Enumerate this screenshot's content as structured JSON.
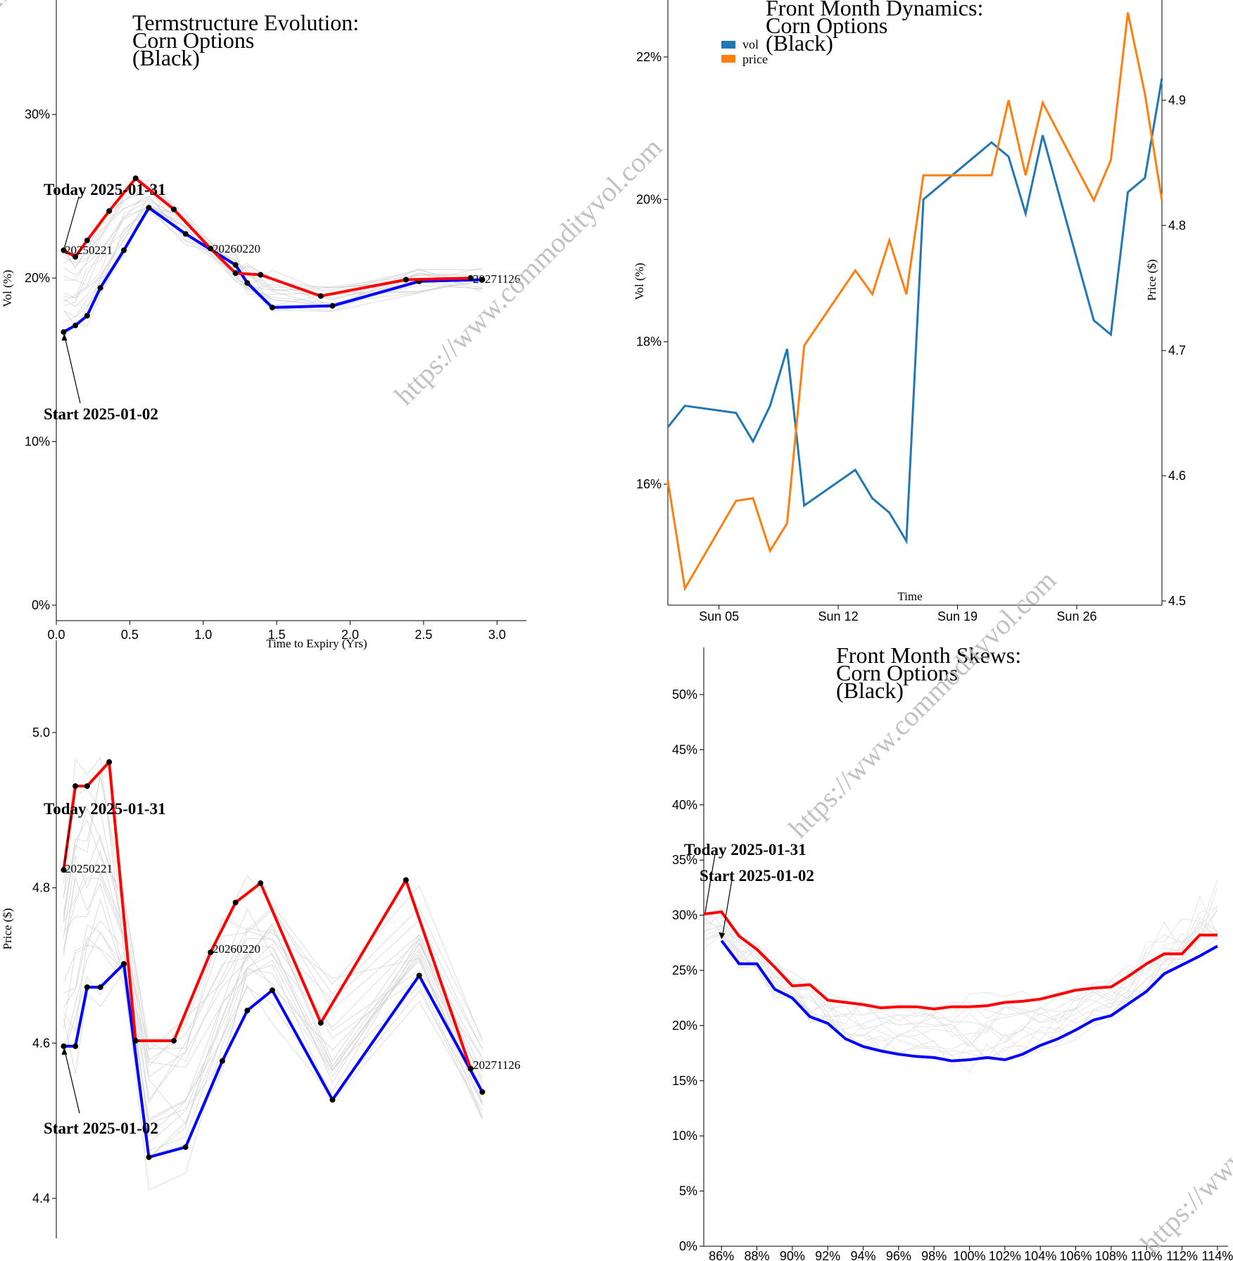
{
  "watermark": "https://www.commodityvol.com",
  "colors": {
    "start": "#0000ff",
    "today": "#ff0000",
    "history": "#d3d3d3",
    "vol": "#1f77b4",
    "price": "#ff7f0e",
    "point": "#000000"
  },
  "chart_data": [
    {
      "id": "termstructure_vol",
      "type": "line",
      "title": [
        "Termstructure Evolution:",
        "Corn Options",
        "(Black)"
      ],
      "xlabel": "Time to Expiry (Yrs)",
      "ylabel": "Vol (%)",
      "xlim": [
        0,
        3.2
      ],
      "ylim": [
        0,
        37
      ],
      "x_ticks": [
        0,
        0.5,
        1.0,
        1.5,
        2.0,
        2.5,
        3.0
      ],
      "x_tick_labels": [
        "0.0",
        "0.5",
        "1.0",
        "1.5",
        "2.0",
        "2.5",
        "3.0"
      ],
      "y_ticks": [
        0,
        10,
        20,
        30
      ],
      "y_tick_labels": [
        "0%",
        "10%",
        "20%",
        "30%"
      ],
      "annotations": {
        "today": "Today 2025-01-31",
        "start": "Start 2025-01-02",
        "expiries": [
          "20250221",
          "20260220",
          "20271126"
        ]
      },
      "series": [
        {
          "role": "start",
          "x": [
            0.05,
            0.13,
            0.21,
            0.3,
            0.46,
            0.63,
            0.88,
            1.22,
            1.3,
            1.47,
            1.88,
            2.47,
            2.9
          ],
          "values": [
            16.7,
            17.1,
            17.7,
            19.4,
            21.7,
            24.3,
            22.7,
            20.8,
            19.7,
            18.2,
            18.3,
            19.8,
            19.9
          ]
        },
        {
          "role": "today",
          "x": [
            0.05,
            0.13,
            0.21,
            0.36,
            0.54,
            0.8,
            1.05,
            1.22,
            1.39,
            1.8,
            2.38,
            2.82
          ],
          "values": [
            21.7,
            21.3,
            22.3,
            24.1,
            26.1,
            24.2,
            21.8,
            20.3,
            20.2,
            18.9,
            19.9,
            20.0
          ]
        }
      ]
    },
    {
      "id": "front_month_dynamics",
      "type": "line",
      "title": [
        "Front Month Dynamics:",
        "Corn Options",
        "(Black)"
      ],
      "xlabel": "Time",
      "ylabel": "Vol (%)",
      "y2label": "Price ($)",
      "xlim": [
        "2025-01-02",
        "2025-01-31"
      ],
      "ylim": [
        14.3,
        22.8
      ],
      "y2lim": [
        4.5,
        4.98
      ],
      "x_ticks": [
        "2025-01-05",
        "2025-01-12",
        "2025-01-19",
        "2025-01-26"
      ],
      "x_tick_labels": [
        "Sun 05",
        "Sun 12",
        "Sun 19",
        "Sun 26"
      ],
      "y_ticks": [
        16,
        18,
        20,
        22
      ],
      "y_tick_labels": [
        "16%",
        "18%",
        "20%",
        "22%"
      ],
      "y2_ticks": [
        4.5,
        4.6,
        4.7,
        4.8,
        4.9
      ],
      "y2_tick_labels": [
        "4.5",
        "4.6",
        "4.7",
        "4.8",
        "4.9"
      ],
      "legend": [
        "vol",
        "price"
      ],
      "dates": [
        "2025-01-02",
        "2025-01-03",
        "2025-01-06",
        "2025-01-07",
        "2025-01-08",
        "2025-01-09",
        "2025-01-10",
        "2025-01-13",
        "2025-01-14",
        "2025-01-15",
        "2025-01-16",
        "2025-01-17",
        "2025-01-21",
        "2025-01-22",
        "2025-01-23",
        "2025-01-24",
        "2025-01-27",
        "2025-01-28",
        "2025-01-29",
        "2025-01-30",
        "2025-01-31"
      ],
      "series": [
        {
          "name": "vol",
          "axis": "left",
          "values": [
            16.8,
            17.1,
            17.0,
            16.6,
            17.1,
            17.9,
            15.7,
            16.2,
            15.8,
            15.6,
            15.2,
            20.0,
            20.8,
            20.6,
            19.8,
            20.9,
            18.3,
            18.1,
            20.1,
            20.3,
            21.7
          ]
        },
        {
          "name": "price",
          "axis": "right",
          "values": [
            4.596,
            4.51,
            4.58,
            4.582,
            4.54,
            4.562,
            4.704,
            4.764,
            4.745,
            4.788,
            4.745,
            4.84,
            4.84,
            4.9,
            4.84,
            4.898,
            4.82,
            4.852,
            4.97,
            4.905,
            4.82
          ]
        }
      ]
    },
    {
      "id": "termstructure_price",
      "type": "line",
      "title": "",
      "xlabel": "",
      "ylabel": "Price ($)",
      "xlim": [
        0,
        3.2
      ],
      "ylim": [
        4.37,
        5.07
      ],
      "y_ticks": [
        4.4,
        4.6,
        4.8,
        5.0
      ],
      "y_tick_labels": [
        "4.4",
        "4.6",
        "4.8",
        "5.0"
      ],
      "annotations": {
        "today": "Today 2025-01-31",
        "start": "Start 2025-01-02",
        "expiries": [
          "20250221",
          "20260220",
          "20271126"
        ]
      },
      "series": [
        {
          "role": "start",
          "x": [
            0.05,
            0.13,
            0.21,
            0.3,
            0.46,
            0.63,
            0.88,
            1.13,
            1.3,
            1.47,
            1.88,
            2.47,
            2.9
          ],
          "values": [
            4.596,
            4.596,
            4.672,
            4.672,
            4.702,
            4.453,
            4.466,
            4.577,
            4.642,
            4.668,
            4.527,
            4.687,
            4.537
          ]
        },
        {
          "role": "today",
          "x": [
            0.05,
            0.13,
            0.21,
            0.36,
            0.54,
            0.8,
            1.05,
            1.22,
            1.39,
            1.8,
            2.38,
            2.82
          ],
          "values": [
            4.823,
            4.931,
            4.931,
            4.962,
            4.603,
            4.603,
            4.717,
            4.781,
            4.806,
            4.626,
            4.81,
            4.567
          ]
        }
      ]
    },
    {
      "id": "front_month_skews",
      "type": "line",
      "title": [
        "Front Month Skews:",
        "Corn Options",
        "(Black)"
      ],
      "xlabel": "",
      "ylabel": "",
      "xlim": [
        85,
        115
      ],
      "ylim": [
        0,
        54
      ],
      "x_ticks": [
        86,
        88,
        90,
        92,
        94,
        96,
        98,
        100,
        102,
        104,
        106,
        108,
        110,
        112,
        114
      ],
      "x_tick_labels": [
        "86%",
        "88%",
        "90%",
        "92%",
        "94%",
        "96%",
        "98%",
        "100%",
        "102%",
        "104%",
        "106%",
        "108%",
        "110%",
        "112%",
        "114%"
      ],
      "y_ticks": [
        0,
        5,
        10,
        15,
        20,
        25,
        30,
        35,
        40,
        45,
        50
      ],
      "y_tick_labels": [
        "0%",
        "5%",
        "10%",
        "15%",
        "20%",
        "25%",
        "30%",
        "35%",
        "40%",
        "45%",
        "50%"
      ],
      "annotations": {
        "today": "Today 2025-01-31",
        "start": "Start 2025-01-02"
      },
      "series": [
        {
          "role": "start",
          "x": [
            86,
            87,
            88,
            89,
            90,
            91,
            92,
            93,
            94,
            95,
            96,
            97,
            98,
            99,
            100,
            101,
            102,
            103,
            104,
            105,
            106,
            107,
            108,
            109,
            110,
            111,
            112,
            113,
            114
          ],
          "values": [
            27.7,
            25.6,
            25.6,
            23.3,
            22.5,
            20.8,
            20.2,
            18.8,
            18.1,
            17.7,
            17.4,
            17.2,
            17.1,
            16.8,
            16.9,
            17.1,
            16.9,
            17.4,
            18.2,
            18.8,
            19.6,
            20.5,
            20.9,
            22.0,
            23.1,
            24.7,
            25.5,
            26.3,
            27.2
          ]
        },
        {
          "role": "today",
          "x": [
            85,
            86,
            87,
            88,
            89,
            90,
            91,
            92,
            93,
            94,
            95,
            96,
            97,
            98,
            99,
            100,
            101,
            102,
            103,
            104,
            105,
            106,
            107,
            108,
            109,
            110,
            111,
            112,
            113,
            114
          ],
          "values": [
            30.1,
            30.3,
            28.1,
            26.9,
            25.3,
            23.6,
            23.7,
            22.3,
            22.1,
            21.9,
            21.6,
            21.7,
            21.7,
            21.5,
            21.7,
            21.7,
            21.8,
            22.1,
            22.2,
            22.4,
            22.8,
            23.2,
            23.4,
            23.5,
            24.5,
            25.6,
            26.5,
            26.5,
            28.2,
            28.2
          ]
        }
      ]
    }
  ]
}
